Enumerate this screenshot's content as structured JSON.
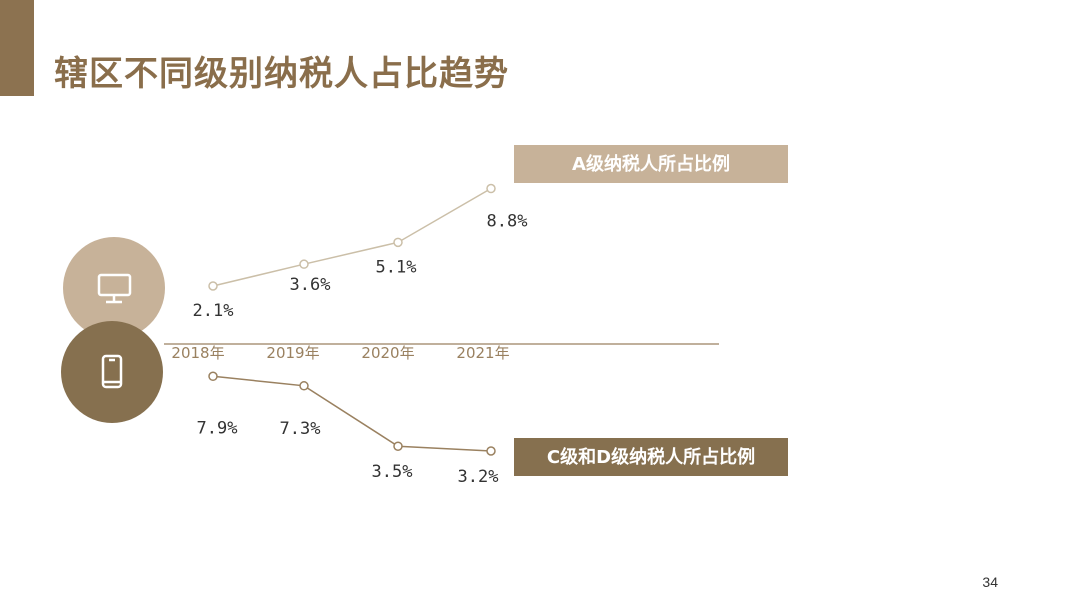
{
  "slide": {
    "title": "辖区不同级别纳税人占比趋势",
    "page_number": "34"
  },
  "colors": {
    "accent": "#8c7250",
    "light": "#c7b299",
    "dark": "#86704f",
    "line_top": "#cbbfa8",
    "line_bottom": "#9a8160"
  },
  "icons": {
    "top": "monitor-icon",
    "bottom": "smartphone-icon"
  },
  "chart_data": {
    "type": "line",
    "categories": [
      "2018年",
      "2019年",
      "2020年",
      "2021年"
    ],
    "series": [
      {
        "name": "A级纳税人所占比例",
        "values": [
          2.1,
          3.6,
          5.1,
          8.8
        ],
        "labels": [
          "2.1%",
          "3.6%",
          "5.1%",
          "8.8%"
        ]
      },
      {
        "name": "C级和D级纳税人所占比例",
        "values": [
          7.9,
          7.3,
          3.5,
          3.2
        ],
        "labels": [
          "7.9%",
          "7.3%",
          "3.5%",
          "3.2%"
        ]
      }
    ],
    "legend": [
      "A级纳税人所占比例",
      "C级和D级纳税人所占比例"
    ],
    "grid": false
  }
}
